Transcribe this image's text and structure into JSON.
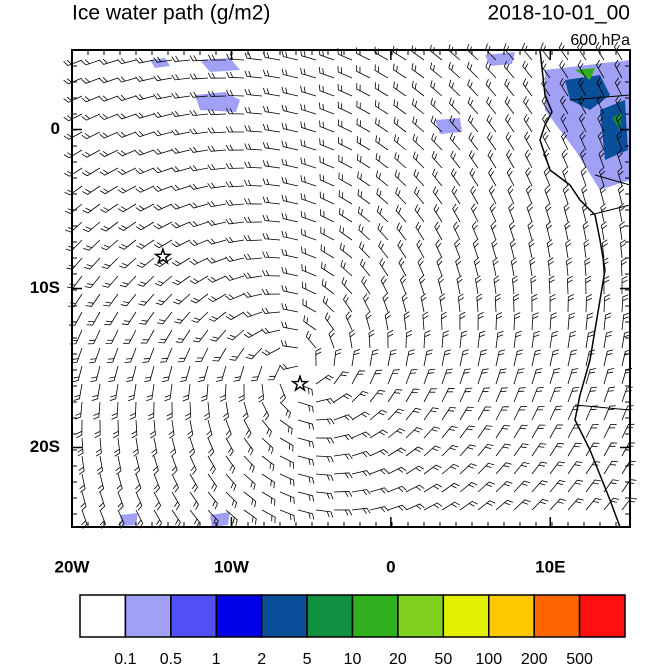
{
  "title": "Ice water path (g/m2)",
  "date": "2018-10-01_00",
  "level": "600 hPa",
  "xlim": [
    -20,
    15
  ],
  "ylim": [
    -25,
    5
  ],
  "xticks": [
    {
      "value": -20,
      "label": "20W"
    },
    {
      "value": -10,
      "label": "10W"
    },
    {
      "value": 0,
      "label": "0"
    },
    {
      "value": 10,
      "label": "10E"
    }
  ],
  "yticks": [
    {
      "value": 0,
      "label": "0"
    },
    {
      "value": -10,
      "label": "10S"
    },
    {
      "value": -20,
      "label": "20S"
    }
  ],
  "markers": [
    {
      "lon": -14.3,
      "lat": -8
    },
    {
      "lon": -5.7,
      "lat": -16
    }
  ],
  "colorbar": {
    "levels": [
      0.1,
      0.5,
      1,
      2,
      5,
      10,
      20,
      50,
      100,
      200,
      500
    ],
    "colors": [
      "#ffffff",
      "#a0a0f5",
      "#5050f5",
      "#0000e6",
      "#0a4f9a",
      "#109040",
      "#30b020",
      "#80d020",
      "#e0f000",
      "#ffc800",
      "#ff6400",
      "#ff1010"
    ]
  }
}
